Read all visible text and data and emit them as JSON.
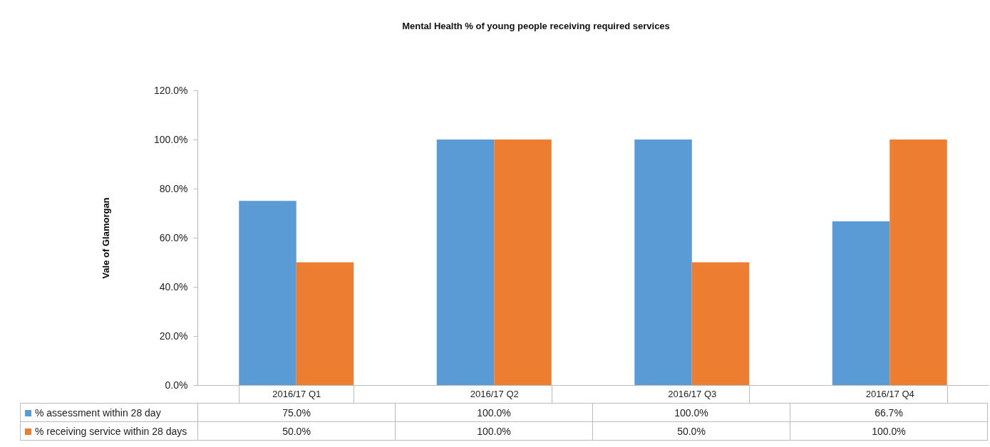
{
  "chart_data": {
    "type": "bar",
    "title": "Mental Health % of young people receiving required services",
    "ylabel": "Vale of Glamorgan",
    "categories": [
      "2016/17 Q1",
      "2016/17 Q2",
      "2016/17 Q3",
      "2016/17 Q4"
    ],
    "series": [
      {
        "name": "% assessment within 28 day",
        "color": "#5b9bd5",
        "values": [
          75,
          100,
          100,
          66.7
        ],
        "value_labels": [
          "75.0%",
          "100.0%",
          "100.0%",
          "66.7%"
        ]
      },
      {
        "name": "% receiving service within 28 days",
        "color": "#ed7d31",
        "values": [
          50,
          100,
          50,
          100
        ],
        "value_labels": [
          "50.0%",
          "100.0%",
          "50.0%",
          "100.0%"
        ]
      }
    ],
    "ylim": [
      0,
      120
    ],
    "yticks": [
      {
        "value": 0,
        "label": "0.0%"
      },
      {
        "value": 20,
        "label": "20.0%"
      },
      {
        "value": 40,
        "label": "40.0%"
      },
      {
        "value": 60,
        "label": "60.0%"
      },
      {
        "value": 80,
        "label": "80.0%"
      },
      {
        "value": 100,
        "label": "100.0%"
      },
      {
        "value": 120,
        "label": "120.0%"
      }
    ],
    "grid": false,
    "legend": "bottom"
  }
}
